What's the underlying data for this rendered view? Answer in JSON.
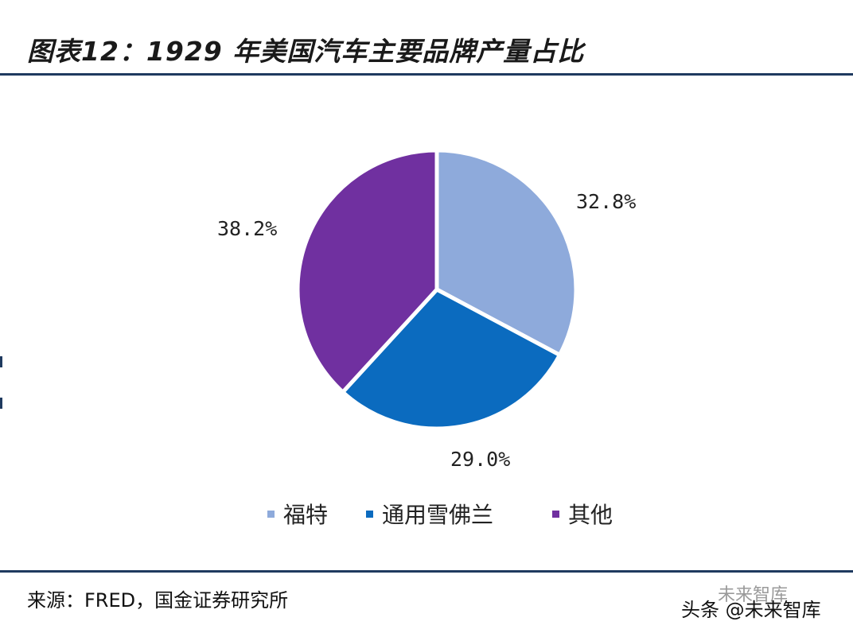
{
  "header": {
    "title": "图表12：1929 年美国汽车主要品牌产量占比"
  },
  "chart_data": {
    "type": "pie",
    "categories": [
      "福特",
      "通用雪佛兰",
      "其他"
    ],
    "values": [
      32.8,
      29.0,
      38.2
    ],
    "labels": [
      "32.8%",
      "29.0%",
      "38.2%"
    ],
    "colors": [
      "#8eaadb",
      "#0b6bbf",
      "#7030a0"
    ],
    "legend_position": "bottom",
    "start_angle": "12 o'clock, clockwise"
  },
  "footer": {
    "source": "来源：FRED，国金证券研究所",
    "watermark": "头条 @未来智库",
    "watermark_wechat": "未来智库"
  }
}
